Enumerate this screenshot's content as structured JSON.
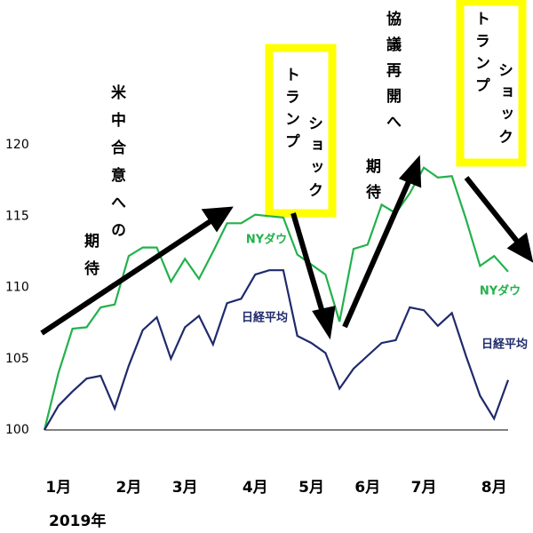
{
  "chart_data": {
    "type": "line",
    "categories": [
      null,
      "1月",
      null,
      null,
      null,
      null,
      "2月",
      null,
      null,
      null,
      "3月",
      null,
      null,
      null,
      null,
      "4月",
      null,
      null,
      null,
      "5月",
      null,
      null,
      null,
      "6月",
      null,
      null,
      null,
      "7月",
      null,
      null,
      null,
      null,
      "8月",
      null
    ],
    "series": [
      {
        "name": "NYダウ",
        "color": "#22b14c",
        "values": [
          100,
          104.0,
          107.1,
          107.2,
          108.6,
          108.8,
          112.2,
          112.8,
          112.8,
          110.4,
          112.0,
          110.6,
          112.5,
          114.5,
          114.5,
          115.1,
          115.0,
          114.9,
          112.3,
          111.6,
          110.9,
          107.6,
          112.7,
          113.0,
          115.8,
          115.2,
          116.6,
          118.4,
          117.7,
          117.8,
          114.8,
          111.5,
          112.2,
          111.1
        ]
      },
      {
        "name": "日経平均",
        "color": "#1f2a6b",
        "values": [
          100,
          101.7,
          102.7,
          103.6,
          103.8,
          101.5,
          104.5,
          107.0,
          107.9,
          105.0,
          107.2,
          108.0,
          106.0,
          108.9,
          109.2,
          110.9,
          111.2,
          111.2,
          106.6,
          106.1,
          105.4,
          102.9,
          104.3,
          105.2,
          106.1,
          106.3,
          108.6,
          108.4,
          107.3,
          108.2,
          105.2,
          102.4,
          100.8,
          103.5
        ]
      }
    ],
    "ylim": [
      97,
      122
    ],
    "yticks": [
      100,
      105,
      110,
      115,
      120
    ],
    "year_label": "2019年",
    "annotations": [
      {
        "text": "米中合意への"
      },
      {
        "text": "期待"
      },
      {
        "text": "トランプ"
      },
      {
        "text": "ショック"
      },
      {
        "text": "協議再開へ"
      },
      {
        "text": "期待"
      },
      {
        "text": "トランプ"
      },
      {
        "text": "ショック"
      }
    ]
  }
}
